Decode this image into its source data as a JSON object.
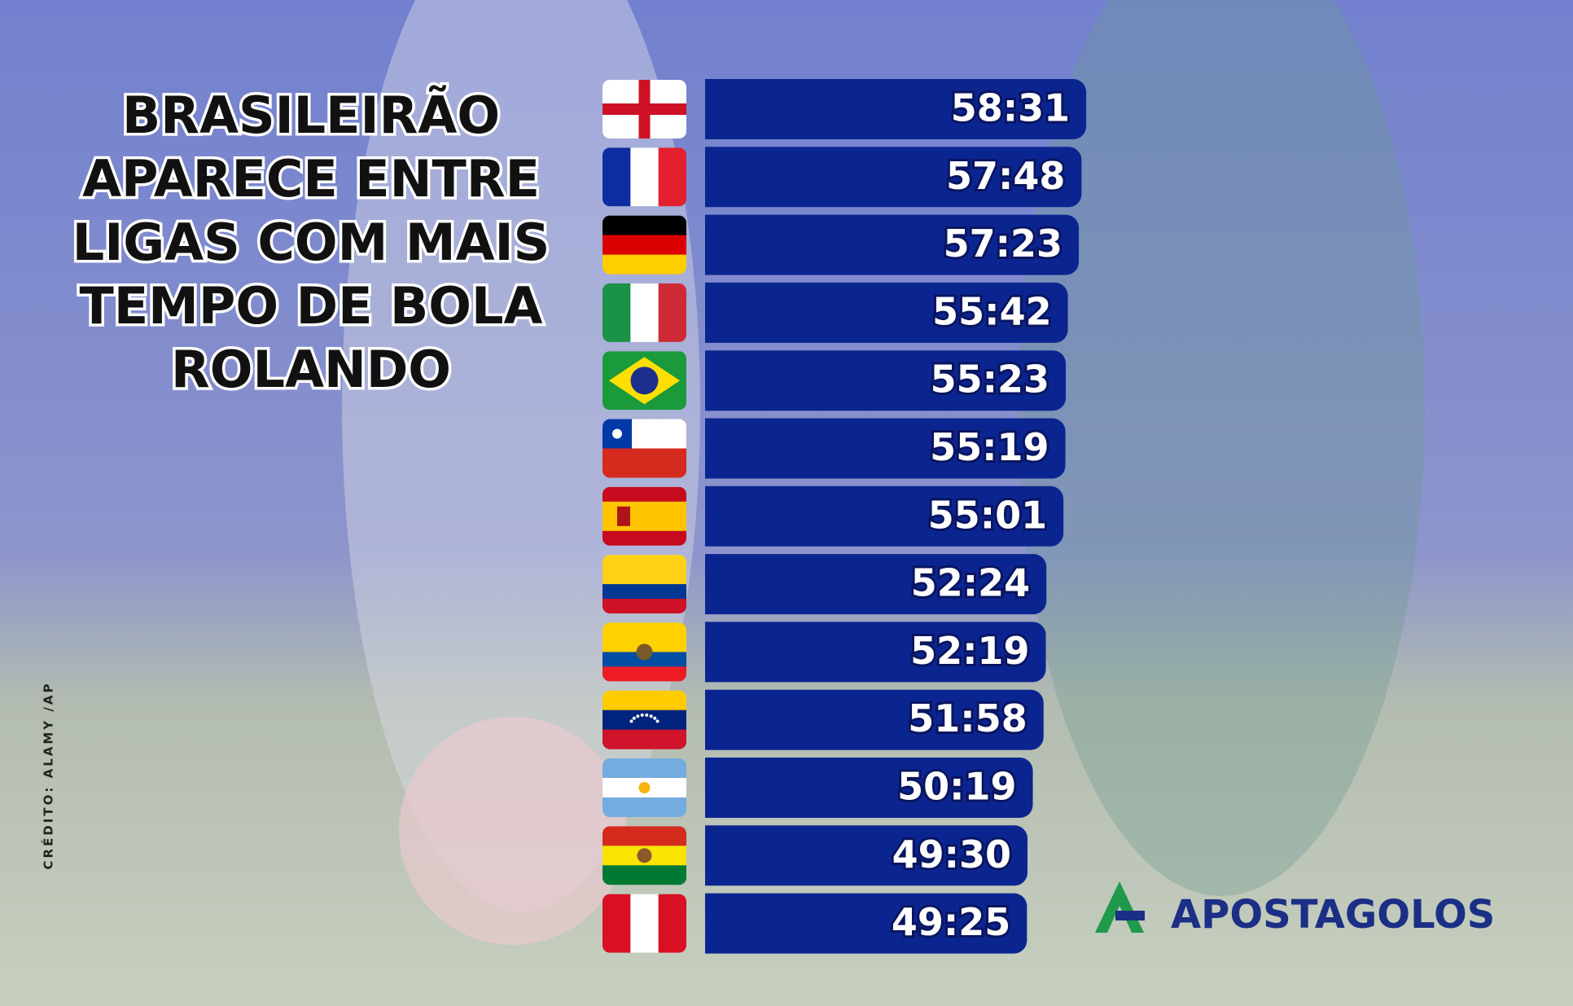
{
  "chart_data": {
    "type": "bar",
    "orientation": "horizontal",
    "title_lines": [
      "BRASILEIRÃO",
      "APARECE ENTRE",
      "LIGAS COM MAIS",
      "TEMPO DE BOLA",
      "ROLANDO"
    ],
    "values": [
      58.517,
      57.8,
      57.383,
      55.7,
      55.383,
      55.317,
      55.017,
      52.4,
      52.317,
      51.967,
      50.317,
      49.5,
      49.417
    ],
    "value_labels": [
      "58:31",
      "57:48",
      "57:23",
      "55:42",
      "55:23",
      "55:19",
      "55:01",
      "52:24",
      "52:19",
      "51:58",
      "50:19",
      "49:30",
      "49:25"
    ],
    "color": "#0b2590"
  },
  "credit": "CRÉDITO: ALAMY /AP",
  "logo": "APOSTAGOLOS"
}
